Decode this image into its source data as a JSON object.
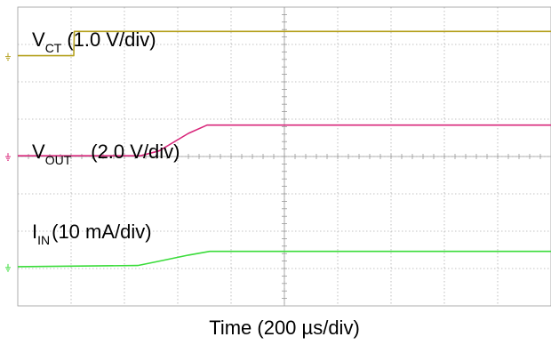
{
  "chart_data": {
    "type": "line",
    "xlabel": "Time (200 µs/div)",
    "x_divisions": 10,
    "y_divisions": 8,
    "grid": true,
    "x_unit": "div",
    "series": [
      {
        "name_main": "V",
        "name_sub": "CT",
        "scale": "(1.0 V/div)",
        "color": "#b5a11f",
        "ground_marker_y_div": 6.7,
        "points": [
          [
            0.0,
            6.7
          ],
          [
            1.05,
            6.7
          ],
          [
            1.06,
            7.35
          ],
          [
            10.0,
            7.35
          ]
        ]
      },
      {
        "name_main": "V",
        "name_sub": "OUT",
        "scale": "(2.0 V/div)",
        "color": "#d8277b",
        "ground_marker_y_div": 4.02,
        "points": [
          [
            0.0,
            4.02
          ],
          [
            2.3,
            4.02
          ],
          [
            2.65,
            4.15
          ],
          [
            3.2,
            4.62
          ],
          [
            3.55,
            4.84
          ],
          [
            10.0,
            4.84
          ]
        ]
      },
      {
        "name_main": "I",
        "name_sub": "IN",
        "scale": "(10 mA/div)",
        "color": "#3adc3a",
        "ground_marker_y_div": 1.05,
        "points": [
          [
            0.0,
            1.05
          ],
          [
            2.25,
            1.08
          ],
          [
            2.6,
            1.18
          ],
          [
            3.2,
            1.36
          ],
          [
            3.6,
            1.46
          ],
          [
            10.0,
            1.46
          ]
        ]
      }
    ]
  }
}
